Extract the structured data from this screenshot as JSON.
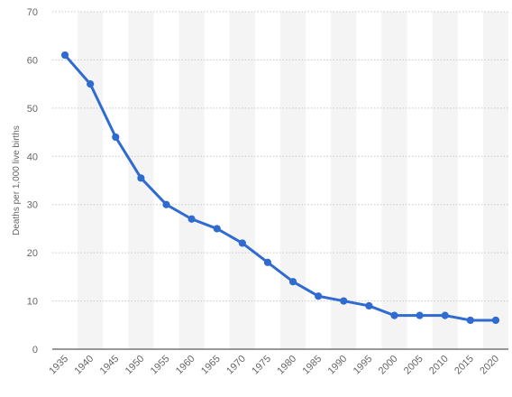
{
  "chart_data": {
    "type": "line",
    "title": "",
    "xlabel": "",
    "ylabel": "Deaths per 1,000 live births",
    "ylim": [
      0,
      70
    ],
    "yticks": [
      0,
      10,
      20,
      30,
      40,
      50,
      60,
      70
    ],
    "grid": true,
    "legend": "none",
    "x": [
      "1935",
      "1940",
      "1945",
      "1950",
      "1955",
      "1960",
      "1965",
      "1970",
      "1975",
      "1980",
      "1985",
      "1990",
      "1995",
      "2000",
      "2005",
      "2010",
      "2015",
      "2020"
    ],
    "series": [
      {
        "values": [
          61,
          55,
          44,
          35.5,
          30,
          27,
          25,
          22,
          18,
          14,
          11,
          10,
          9,
          7,
          7,
          7,
          6,
          6
        ],
        "color": "#2f6bd0"
      }
    ]
  }
}
